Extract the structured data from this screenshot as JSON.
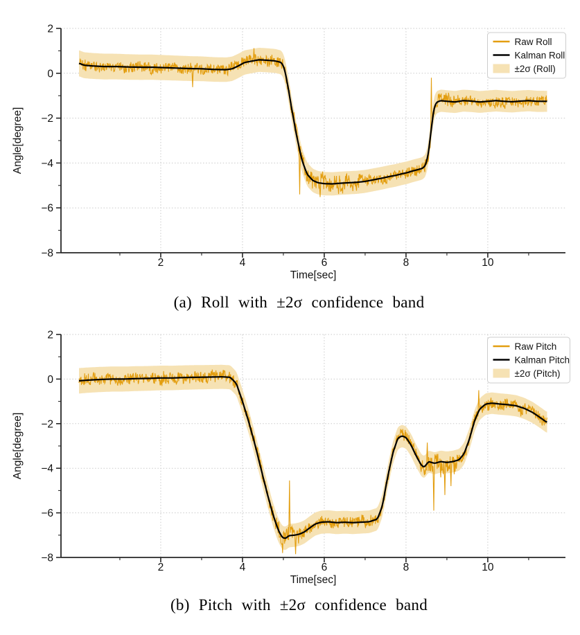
{
  "page": {
    "background": "#ffffff"
  },
  "chart_data": [
    {
      "id": "roll",
      "type": "line",
      "caption": "(a) Roll with ±2σ confidence band",
      "xlabel": "Time[sec]",
      "ylabel": "Angle[degree]",
      "xlim": [
        -0.44,
        11.9
      ],
      "ylim": [
        -8,
        2
      ],
      "xticks": [
        2,
        4,
        6,
        8,
        10
      ],
      "yticks": [
        2,
        0,
        -2,
        -4,
        -6,
        -8
      ],
      "grid": true,
      "legend_position": "upper right",
      "legend": [
        {
          "label": "Raw Roll",
          "type": "line",
          "color": "#E39E10"
        },
        {
          "label": "Kalman Roll",
          "type": "line",
          "color": "#000000"
        },
        {
          "label": "±2σ (Roll)",
          "type": "band",
          "color": "#F6E2B4"
        }
      ],
      "colors": {
        "raw": "#E39E10",
        "kalman": "#000000",
        "band": "#F6E2B4",
        "grid": "#c9c9c9",
        "spine": "#262626"
      },
      "t_range": [
        0.0,
        11.45
      ],
      "band_halfwidth": [
        0.58,
        0.47
      ],
      "noise": {
        "seed": 20231107,
        "base": 0.3,
        "bursts": [
          [
            5.15,
            6.9,
            1.55
          ],
          [
            8.45,
            9.05,
            1.3
          ]
        ]
      },
      "raw_spikes": [
        [
          2.78,
          -0.62
        ],
        [
          4.28,
          1.12
        ],
        [
          5.4,
          -5.4
        ],
        [
          5.9,
          -5.52
        ],
        [
          6.35,
          -5.38
        ],
        [
          6.7,
          -5.25
        ],
        [
          8.62,
          -0.2
        ]
      ],
      "kalman_series": [
        [
          0.0,
          0.45
        ],
        [
          0.12,
          0.36
        ],
        [
          0.3,
          0.33
        ],
        [
          0.6,
          0.3
        ],
        [
          0.9,
          0.3
        ],
        [
          1.2,
          0.28
        ],
        [
          1.5,
          0.27
        ],
        [
          1.8,
          0.27
        ],
        [
          2.1,
          0.25
        ],
        [
          2.4,
          0.23
        ],
        [
          2.7,
          0.21
        ],
        [
          3.0,
          0.2
        ],
        [
          3.3,
          0.17
        ],
        [
          3.6,
          0.16
        ],
        [
          3.75,
          0.2
        ],
        [
          3.9,
          0.33
        ],
        [
          4.05,
          0.48
        ],
        [
          4.25,
          0.55
        ],
        [
          4.4,
          0.6
        ],
        [
          4.6,
          0.58
        ],
        [
          4.8,
          0.55
        ],
        [
          4.95,
          0.48
        ],
        [
          5.02,
          0.25
        ],
        [
          5.1,
          -0.45
        ],
        [
          5.2,
          -1.55
        ],
        [
          5.32,
          -2.75
        ],
        [
          5.45,
          -3.85
        ],
        [
          5.58,
          -4.5
        ],
        [
          5.72,
          -4.78
        ],
        [
          5.85,
          -4.88
        ],
        [
          6.0,
          -4.92
        ],
        [
          6.2,
          -4.93
        ],
        [
          6.4,
          -4.9
        ],
        [
          6.6,
          -4.88
        ],
        [
          6.8,
          -4.86
        ],
        [
          7.0,
          -4.82
        ],
        [
          7.2,
          -4.75
        ],
        [
          7.4,
          -4.68
        ],
        [
          7.6,
          -4.6
        ],
        [
          7.75,
          -4.55
        ],
        [
          7.9,
          -4.48
        ],
        [
          8.05,
          -4.42
        ],
        [
          8.15,
          -4.36
        ],
        [
          8.28,
          -4.3
        ],
        [
          8.4,
          -4.24
        ],
        [
          8.48,
          -4.1
        ],
        [
          8.55,
          -3.55
        ],
        [
          8.62,
          -2.45
        ],
        [
          8.68,
          -1.6
        ],
        [
          8.74,
          -1.3
        ],
        [
          8.85,
          -1.22
        ],
        [
          9.0,
          -1.25
        ],
        [
          9.2,
          -1.28
        ],
        [
          9.4,
          -1.22
        ],
        [
          9.6,
          -1.24
        ],
        [
          9.8,
          -1.28
        ],
        [
          10.0,
          -1.25
        ],
        [
          10.2,
          -1.22
        ],
        [
          10.4,
          -1.25
        ],
        [
          10.6,
          -1.27
        ],
        [
          10.8,
          -1.24
        ],
        [
          11.0,
          -1.22
        ],
        [
          11.2,
          -1.25
        ],
        [
          11.45,
          -1.25
        ]
      ]
    },
    {
      "id": "pitch",
      "type": "line",
      "caption": "(b) Pitch with ±2σ confidence band",
      "xlabel": "Time[sec]",
      "ylabel": "Angle[degree]",
      "xlim": [
        -0.44,
        11.9
      ],
      "ylim": [
        -8,
        2
      ],
      "xticks": [
        2,
        4,
        6,
        8,
        10
      ],
      "yticks": [
        2,
        0,
        -2,
        -4,
        -6,
        -8
      ],
      "grid": true,
      "legend_position": "upper right",
      "legend": [
        {
          "label": "Raw Pitch",
          "type": "line",
          "color": "#E39E10"
        },
        {
          "label": "Kalman Pitch",
          "type": "line",
          "color": "#000000"
        },
        {
          "label": "±2σ (Pitch)",
          "type": "band",
          "color": "#F6E2B4"
        }
      ],
      "colors": {
        "raw": "#E39E10",
        "kalman": "#000000",
        "band": "#F6E2B4",
        "grid": "#c9c9c9",
        "spine": "#262626"
      },
      "t_range": [
        0.0,
        11.45
      ],
      "band_halfwidth": [
        0.57,
        0.47
      ],
      "noise": {
        "seed": 98451,
        "base": 0.33,
        "bursts": [
          [
            4.6,
            5.45,
            1.5
          ],
          [
            8.35,
            9.25,
            1.8
          ]
        ]
      },
      "raw_spikes": [
        [
          4.98,
          -7.8
        ],
        [
          5.15,
          -4.55
        ],
        [
          5.3,
          -7.85
        ],
        [
          8.52,
          -2.85
        ],
        [
          8.68,
          -5.9
        ],
        [
          8.95,
          -5.2
        ],
        [
          9.1,
          -4.8
        ],
        [
          9.78,
          -0.5
        ]
      ],
      "kalman_series": [
        [
          0.0,
          -0.08
        ],
        [
          0.2,
          -0.05
        ],
        [
          0.5,
          -0.02
        ],
        [
          0.8,
          0.0
        ],
        [
          1.1,
          0.0
        ],
        [
          1.4,
          0.02
        ],
        [
          1.7,
          0.03
        ],
        [
          2.0,
          0.05
        ],
        [
          2.3,
          0.05
        ],
        [
          2.6,
          0.07
        ],
        [
          2.9,
          0.08
        ],
        [
          3.2,
          0.09
        ],
        [
          3.5,
          0.1
        ],
        [
          3.7,
          0.08
        ],
        [
          3.85,
          -0.2
        ],
        [
          4.0,
          -1.0
        ],
        [
          4.15,
          -1.9
        ],
        [
          4.3,
          -2.9
        ],
        [
          4.45,
          -4.0
        ],
        [
          4.6,
          -5.1
        ],
        [
          4.75,
          -6.1
        ],
        [
          4.87,
          -6.75
        ],
        [
          4.97,
          -7.1
        ],
        [
          5.05,
          -7.15
        ],
        [
          5.14,
          -7.02
        ],
        [
          5.28,
          -7.0
        ],
        [
          5.4,
          -6.95
        ],
        [
          5.52,
          -6.85
        ],
        [
          5.64,
          -6.68
        ],
        [
          5.78,
          -6.5
        ],
        [
          5.92,
          -6.42
        ],
        [
          6.1,
          -6.4
        ],
        [
          6.3,
          -6.44
        ],
        [
          6.5,
          -6.42
        ],
        [
          6.7,
          -6.44
        ],
        [
          6.9,
          -6.42
        ],
        [
          7.1,
          -6.4
        ],
        [
          7.3,
          -6.28
        ],
        [
          7.42,
          -5.7
        ],
        [
          7.55,
          -4.4
        ],
        [
          7.68,
          -3.3
        ],
        [
          7.8,
          -2.65
        ],
        [
          7.9,
          -2.55
        ],
        [
          8.0,
          -2.62
        ],
        [
          8.12,
          -2.95
        ],
        [
          8.25,
          -3.45
        ],
        [
          8.38,
          -3.88
        ],
        [
          8.45,
          -3.95
        ],
        [
          8.55,
          -3.7
        ],
        [
          8.7,
          -3.78
        ],
        [
          8.85,
          -3.7
        ],
        [
          9.0,
          -3.74
        ],
        [
          9.15,
          -3.7
        ],
        [
          9.3,
          -3.62
        ],
        [
          9.42,
          -3.35
        ],
        [
          9.55,
          -2.7
        ],
        [
          9.68,
          -1.85
        ],
        [
          9.8,
          -1.35
        ],
        [
          9.95,
          -1.12
        ],
        [
          10.1,
          -1.08
        ],
        [
          10.3,
          -1.12
        ],
        [
          10.5,
          -1.15
        ],
        [
          10.7,
          -1.2
        ],
        [
          10.9,
          -1.32
        ],
        [
          11.1,
          -1.5
        ],
        [
          11.3,
          -1.75
        ],
        [
          11.45,
          -1.95
        ]
      ]
    }
  ]
}
